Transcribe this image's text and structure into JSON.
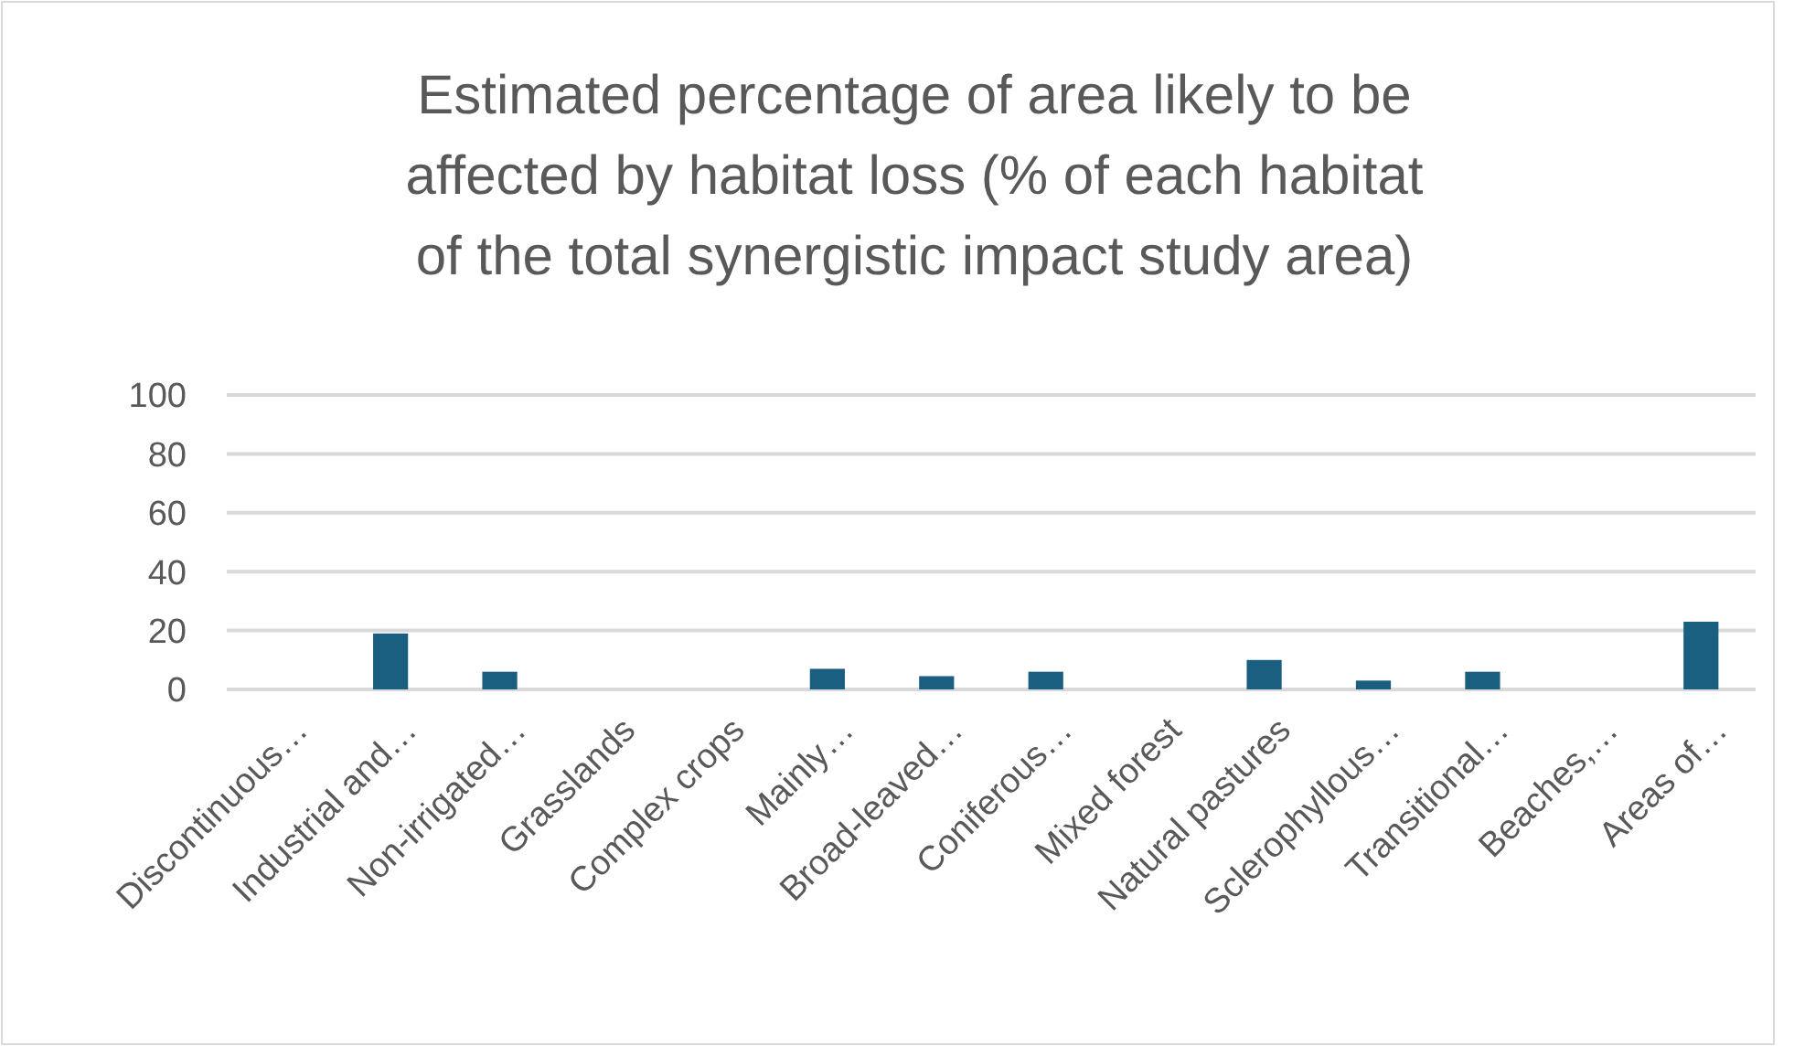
{
  "chart_data": {
    "type": "bar",
    "title": "Estimated percentage of area likely to be\naffected by habitat loss (% of each habitat\nof the total synergistic impact study area)",
    "categories": [
      "Discontinuous…",
      "Industrial and…",
      "Non-irrigated…",
      "Grasslands",
      "Complex crops",
      "Mainly…",
      "Broad-leaved…",
      "Coniferous…",
      "Mixed forest",
      "Natural pastures",
      "Sclerophyllous…",
      "Transitional…",
      "Beaches,…",
      "Areas of…"
    ],
    "values": [
      0,
      19,
      6,
      0,
      0,
      7,
      4.5,
      6,
      0,
      10,
      3,
      6,
      0,
      23
    ],
    "color": "#1a5f80",
    "ylim": [
      0,
      100
    ],
    "yticks": [
      0,
      20,
      40,
      60,
      80,
      100
    ],
    "grid": "y"
  }
}
